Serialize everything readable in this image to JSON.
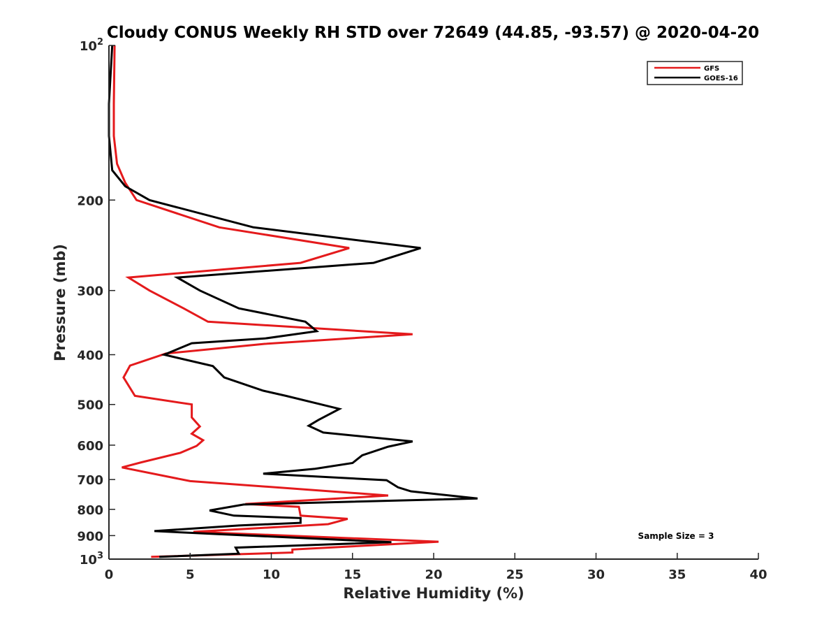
{
  "chart_data": {
    "type": "line",
    "title": "Cloudy CONUS Weekly RH STD over 72649 (44.85, -93.57) @ 2020-04-20",
    "xlabel": "Relative Humidity (%)",
    "ylabel": "Pressure (mb)",
    "xlim": [
      0,
      40
    ],
    "ylim": [
      100,
      1000
    ],
    "y_scale": "log",
    "y_reversed": true,
    "grid": false,
    "x_ticks": [
      "0",
      "5",
      "10",
      "15",
      "20",
      "25",
      "30",
      "35",
      "40"
    ],
    "y_ticks": [
      {
        "value": 100,
        "label": "10",
        "sup": "2"
      },
      {
        "value": 200,
        "label": "200",
        "sup": ""
      },
      {
        "value": 300,
        "label": "300",
        "sup": ""
      },
      {
        "value": 400,
        "label": "400",
        "sup": ""
      },
      {
        "value": 500,
        "label": "500",
        "sup": ""
      },
      {
        "value": 600,
        "label": "600",
        "sup": ""
      },
      {
        "value": 700,
        "label": "700",
        "sup": ""
      },
      {
        "value": 800,
        "label": "800",
        "sup": ""
      },
      {
        "value": 900,
        "label": "900",
        "sup": ""
      },
      {
        "value": 1000,
        "label": "10",
        "sup": "3"
      }
    ],
    "legend_position": "top-right",
    "annotation": "Sample Size = 3",
    "series": [
      {
        "name": "GFS",
        "color": "#e41a1c",
        "points": [
          [
            0.35,
            100
          ],
          [
            0.3,
            130
          ],
          [
            0.3,
            150
          ],
          [
            0.5,
            170
          ],
          [
            1.0,
            185
          ],
          [
            1.7,
            200
          ],
          [
            6.8,
            226
          ],
          [
            14.8,
            248
          ],
          [
            11.8,
            265
          ],
          [
            1.2,
            283
          ],
          [
            2.5,
            300
          ],
          [
            4.6,
            325
          ],
          [
            6.1,
            345
          ],
          [
            18.7,
            365
          ],
          [
            9.6,
            381
          ],
          [
            3.5,
            398
          ],
          [
            1.3,
            420
          ],
          [
            0.9,
            443
          ],
          [
            1.6,
            481
          ],
          [
            5.1,
            500
          ],
          [
            5.1,
            530
          ],
          [
            5.6,
            552
          ],
          [
            5.1,
            570
          ],
          [
            5.8,
            587
          ],
          [
            5.4,
            602
          ],
          [
            4.4,
            621
          ],
          [
            2.0,
            648
          ],
          [
            0.8,
            663
          ],
          [
            5.0,
            705
          ],
          [
            17.2,
            752
          ],
          [
            8.4,
            781
          ],
          [
            11.7,
            791
          ],
          [
            11.8,
            823
          ],
          [
            14.7,
            835
          ],
          [
            13.5,
            855
          ],
          [
            5.2,
            885
          ],
          [
            20.3,
            925
          ],
          [
            11.3,
            958
          ],
          [
            11.3,
            971
          ],
          [
            2.6,
            990
          ]
        ]
      },
      {
        "name": "GOES-16",
        "color": "#000000",
        "points": [
          [
            0.2,
            100
          ],
          [
            0.0,
            130
          ],
          [
            0.0,
            150
          ],
          [
            0.2,
            175
          ],
          [
            1.0,
            188
          ],
          [
            2.5,
            200
          ],
          [
            8.9,
            226
          ],
          [
            19.2,
            248
          ],
          [
            16.3,
            265
          ],
          [
            4.2,
            283
          ],
          [
            5.6,
            300
          ],
          [
            8.0,
            325
          ],
          [
            12.1,
            345
          ],
          [
            12.8,
            360
          ],
          [
            9.6,
            372
          ],
          [
            5.1,
            380
          ],
          [
            3.4,
            400
          ],
          [
            6.4,
            421
          ],
          [
            7.1,
            443
          ],
          [
            9.5,
            470
          ],
          [
            10.9,
            481
          ],
          [
            14.2,
            510
          ],
          [
            12.9,
            536
          ],
          [
            12.3,
            550
          ],
          [
            13.2,
            567
          ],
          [
            18.7,
            590
          ],
          [
            17.2,
            604
          ],
          [
            15.6,
            628
          ],
          [
            15.0,
            650
          ],
          [
            12.7,
            667
          ],
          [
            9.5,
            682
          ],
          [
            17.1,
            702
          ],
          [
            17.8,
            725
          ],
          [
            18.6,
            738
          ],
          [
            22.7,
            762
          ],
          [
            8.3,
            783
          ],
          [
            6.2,
            804
          ],
          [
            7.7,
            823
          ],
          [
            11.8,
            832
          ],
          [
            11.8,
            850
          ],
          [
            8.0,
            860
          ],
          [
            2.8,
            882
          ],
          [
            17.4,
            927
          ],
          [
            7.8,
            950
          ],
          [
            8.0,
            976
          ],
          [
            3.1,
            990
          ]
        ]
      }
    ]
  }
}
